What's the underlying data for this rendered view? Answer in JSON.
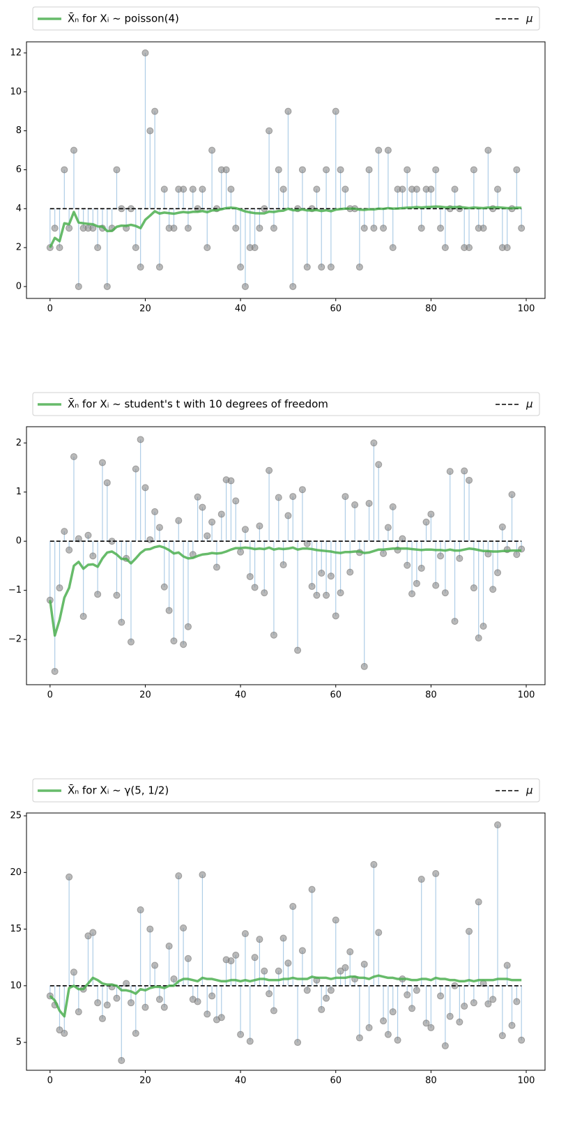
{
  "chart_data": [
    {
      "type": "stem",
      "x": [
        0,
        1,
        2,
        3,
        4,
        5,
        6,
        7,
        8,
        9,
        10,
        11,
        12,
        13,
        14,
        15,
        16,
        17,
        18,
        19,
        20,
        21,
        22,
        23,
        24,
        25,
        26,
        27,
        28,
        29,
        30,
        31,
        32,
        33,
        34,
        35,
        36,
        37,
        38,
        39,
        40,
        41,
        42,
        43,
        44,
        45,
        46,
        47,
        48,
        49,
        50,
        51,
        52,
        53,
        54,
        55,
        56,
        57,
        58,
        59,
        60,
        61,
        62,
        63,
        64,
        65,
        66,
        67,
        68,
        69,
        70,
        71,
        72,
        73,
        74,
        75,
        76,
        77,
        78,
        79,
        80,
        81,
        82,
        83,
        84,
        85,
        86,
        87,
        88,
        89,
        90,
        91,
        92,
        93,
        94,
        95,
        96,
        97,
        98,
        99
      ],
      "values": [
        2,
        3,
        2,
        6,
        3,
        7,
        0,
        3,
        3,
        3,
        2,
        3,
        0,
        3,
        6,
        4,
        3,
        4,
        2,
        1,
        12,
        8,
        9,
        1,
        5,
        3,
        3,
        5,
        5,
        3,
        5,
        4,
        5,
        2,
        7,
        4,
        6,
        6,
        5,
        3,
        1,
        0,
        2,
        2,
        3,
        4,
        8,
        3,
        6,
        5,
        9,
        0,
        4,
        6,
        1,
        4,
        5,
        1,
        6,
        1,
        9,
        6,
        5,
        4,
        4,
        1,
        3,
        6,
        3,
        7,
        3,
        7,
        2,
        5,
        5,
        6,
        5,
        5,
        3,
        5,
        5,
        6,
        3,
        2,
        4,
        5,
        4,
        2,
        2,
        6,
        3,
        3,
        7,
        4,
        5,
        2,
        2,
        4,
        6,
        3
      ],
      "marker_color": "#808080",
      "stem_color": "#aecde6",
      "series": [
        {
          "name": "X̄ₙ for Xᵢ ~ poisson(4)",
          "color": "#4caf50",
          "values": [
            2.0,
            2.5,
            2.33,
            3.25,
            3.2,
            3.83,
            3.29,
            3.25,
            3.22,
            3.2,
            3.09,
            3.08,
            2.85,
            2.86,
            3.07,
            3.13,
            3.12,
            3.17,
            3.11,
            3.0,
            3.43,
            3.64,
            3.87,
            3.75,
            3.8,
            3.77,
            3.74,
            3.79,
            3.83,
            3.8,
            3.84,
            3.84,
            3.88,
            3.82,
            3.91,
            3.92,
            3.97,
            4.03,
            4.05,
            4.03,
            3.95,
            3.86,
            3.81,
            3.77,
            3.76,
            3.76,
            3.85,
            3.83,
            3.88,
            3.9,
            4.0,
            3.92,
            3.92,
            3.96,
            3.91,
            3.91,
            3.93,
            3.88,
            3.92,
            3.87,
            3.95,
            3.98,
            4.0,
            4.0,
            4.0,
            3.95,
            3.94,
            3.97,
            3.96,
            4.0,
            3.99,
            4.03,
            4.0,
            4.01,
            4.03,
            4.05,
            4.06,
            4.08,
            4.06,
            4.08,
            4.09,
            4.11,
            4.1,
            4.07,
            4.07,
            4.08,
            4.08,
            4.06,
            4.03,
            4.06,
            4.04,
            4.03,
            4.06,
            4.06,
            4.07,
            4.05,
            4.03,
            4.03,
            4.05,
            4.04
          ]
        }
      ],
      "hline": {
        "name": "μ",
        "value": 4,
        "color": "#000000"
      },
      "xlim": [
        -4.95,
        103.95
      ],
      "xticks": [
        0,
        20,
        40,
        60,
        80,
        100
      ],
      "ylim": [
        -0.61,
        12.57
      ],
      "yticks": [
        0,
        2,
        4,
        6,
        8,
        10,
        12
      ],
      "legend": "top"
    },
    {
      "type": "stem",
      "x": [
        0,
        1,
        2,
        3,
        4,
        5,
        6,
        7,
        8,
        9,
        10,
        11,
        12,
        13,
        14,
        15,
        16,
        17,
        18,
        19,
        20,
        21,
        22,
        23,
        24,
        25,
        26,
        27,
        28,
        29,
        30,
        31,
        32,
        33,
        34,
        35,
        36,
        37,
        38,
        39,
        40,
        41,
        42,
        43,
        44,
        45,
        46,
        47,
        48,
        49,
        50,
        51,
        52,
        53,
        54,
        55,
        56,
        57,
        58,
        59,
        60,
        61,
        62,
        63,
        64,
        65,
        66,
        67,
        68,
        69,
        70,
        71,
        72,
        73,
        74,
        75,
        76,
        77,
        78,
        79,
        80,
        81,
        82,
        83,
        84,
        85,
        86,
        87,
        88,
        89,
        90,
        91,
        92,
        93,
        94,
        95,
        96,
        97,
        98,
        99
      ],
      "values": [
        -1.2,
        -2.65,
        -0.95,
        0.2,
        -0.18,
        1.72,
        0.05,
        -1.53,
        0.12,
        -0.3,
        -1.08,
        1.6,
        1.19,
        0.0,
        -1.1,
        -1.65,
        -0.35,
        -2.05,
        1.47,
        2.07,
        1.09,
        0.03,
        0.6,
        0.28,
        -0.93,
        -1.41,
        -2.03,
        0.42,
        -2.1,
        -1.74,
        -0.27,
        0.9,
        0.69,
        0.11,
        0.39,
        -0.53,
        0.55,
        1.25,
        1.23,
        0.82,
        -0.22,
        0.24,
        -0.72,
        -0.94,
        0.31,
        -1.05,
        1.44,
        -1.91,
        0.89,
        -0.48,
        0.52,
        0.91,
        -2.22,
        1.05,
        -0.05,
        -0.92,
        -1.1,
        -0.65,
        -1.1,
        -0.71,
        -1.52,
        -1.05,
        0.91,
        -0.63,
        0.74,
        -0.23,
        -2.55,
        0.77,
        2.0,
        1.56,
        -0.25,
        0.28,
        0.7,
        -0.18,
        0.05,
        -0.49,
        -1.07,
        -0.86,
        -0.55,
        0.39,
        0.55,
        -0.9,
        -0.3,
        -1.05,
        1.42,
        -1.63,
        -0.35,
        1.43,
        1.24,
        -0.95,
        -1.97,
        -1.73,
        -0.26,
        -0.98,
        -0.64,
        0.29,
        -0.17,
        0.95,
        -0.27,
        -0.16
      ],
      "marker_color": "#808080",
      "stem_color": "#aecde6",
      "series": [
        {
          "name": "X̄ₙ for Xᵢ ~ student's t with 10 degrees of freedom",
          "color": "#4caf50",
          "values": [
            -1.2,
            -1.92,
            -1.6,
            -1.15,
            -0.95,
            -0.5,
            -0.42,
            -0.56,
            -0.48,
            -0.47,
            -0.52,
            -0.35,
            -0.23,
            -0.21,
            -0.27,
            -0.36,
            -0.36,
            -0.45,
            -0.35,
            -0.24,
            -0.17,
            -0.16,
            -0.12,
            -0.1,
            -0.13,
            -0.18,
            -0.25,
            -0.23,
            -0.31,
            -0.35,
            -0.34,
            -0.3,
            -0.27,
            -0.26,
            -0.24,
            -0.25,
            -0.24,
            -0.21,
            -0.17,
            -0.14,
            -0.14,
            -0.13,
            -0.14,
            -0.16,
            -0.15,
            -0.16,
            -0.13,
            -0.17,
            -0.15,
            -0.16,
            -0.15,
            -0.13,
            -0.17,
            -0.15,
            -0.15,
            -0.16,
            -0.18,
            -0.19,
            -0.2,
            -0.21,
            -0.23,
            -0.24,
            -0.22,
            -0.22,
            -0.21,
            -0.21,
            -0.24,
            -0.23,
            -0.2,
            -0.17,
            -0.17,
            -0.16,
            -0.15,
            -0.15,
            -0.15,
            -0.15,
            -0.16,
            -0.17,
            -0.18,
            -0.17,
            -0.17,
            -0.18,
            -0.18,
            -0.19,
            -0.17,
            -0.19,
            -0.19,
            -0.17,
            -0.15,
            -0.16,
            -0.18,
            -0.2,
            -0.2,
            -0.21,
            -0.21,
            -0.2,
            -0.2,
            -0.19,
            -0.19,
            -0.19
          ]
        }
      ],
      "hline": {
        "name": "μ",
        "value": 0,
        "color": "#000000"
      },
      "xlim": [
        -4.95,
        103.95
      ],
      "xticks": [
        0,
        20,
        40,
        60,
        80,
        100
      ],
      "ylim": [
        -2.92,
        2.33
      ],
      "yticks": [
        {
          "value": -2,
          "label": "−2"
        },
        {
          "value": -1,
          "label": "−1"
        },
        0,
        1,
        2
      ],
      "legend": "top"
    },
    {
      "type": "stem",
      "x": [
        0,
        1,
        2,
        3,
        4,
        5,
        6,
        7,
        8,
        9,
        10,
        11,
        12,
        13,
        14,
        15,
        16,
        17,
        18,
        19,
        20,
        21,
        22,
        23,
        24,
        25,
        26,
        27,
        28,
        29,
        30,
        31,
        32,
        33,
        34,
        35,
        36,
        37,
        38,
        39,
        40,
        41,
        42,
        43,
        44,
        45,
        46,
        47,
        48,
        49,
        50,
        51,
        52,
        53,
        54,
        55,
        56,
        57,
        58,
        59,
        60,
        61,
        62,
        63,
        64,
        65,
        66,
        67,
        68,
        69,
        70,
        71,
        72,
        73,
        74,
        75,
        76,
        77,
        78,
        79,
        80,
        81,
        82,
        83,
        84,
        85,
        86,
        87,
        88,
        89,
        90,
        91,
        92,
        93,
        94,
        95,
        96,
        97,
        98,
        99
      ],
      "values": [
        9.1,
        8.3,
        6.1,
        5.8,
        19.6,
        11.2,
        7.7,
        9.7,
        14.4,
        14.7,
        8.5,
        7.1,
        8.3,
        9.9,
        8.9,
        3.4,
        10.2,
        8.5,
        5.8,
        16.7,
        8.1,
        15.0,
        11.8,
        8.8,
        8.1,
        13.5,
        10.6,
        19.7,
        15.1,
        12.4,
        8.8,
        8.6,
        19.8,
        7.5,
        9.1,
        7.0,
        7.2,
        12.3,
        12.2,
        12.7,
        5.7,
        14.6,
        5.1,
        12.5,
        14.1,
        11.3,
        9.3,
        7.8,
        11.3,
        14.2,
        12.0,
        17.0,
        5.0,
        13.1,
        9.6,
        18.5,
        10.5,
        7.9,
        8.9,
        9.6,
        15.8,
        11.3,
        11.6,
        13.0,
        10.6,
        5.4,
        11.9,
        6.3,
        20.7,
        14.7,
        6.9,
        5.7,
        7.7,
        5.2,
        10.6,
        9.2,
        8.0,
        9.6,
        19.4,
        6.7,
        6.3,
        19.9,
        9.1,
        4.7,
        7.3,
        10.0,
        6.8,
        8.2,
        14.8,
        8.5,
        17.4,
        10.2,
        8.4,
        8.8,
        24.2,
        5.6,
        11.8,
        6.5,
        8.6,
        5.2
      ],
      "marker_color": "#808080",
      "stem_color": "#aecde6",
      "series": [
        {
          "name": "X̄ₙ for Xᵢ ~ γ(5, 1/2)",
          "color": "#4caf50",
          "values": [
            9.1,
            8.7,
            7.8,
            7.3,
            9.8,
            10.0,
            9.7,
            9.7,
            10.2,
            10.7,
            10.5,
            10.2,
            10.1,
            10.1,
            10.0,
            9.6,
            9.6,
            9.5,
            9.3,
            9.7,
            9.6,
            9.8,
            9.9,
            9.9,
            9.8,
            10.0,
            10.0,
            10.4,
            10.6,
            10.6,
            10.5,
            10.4,
            10.7,
            10.6,
            10.6,
            10.5,
            10.4,
            10.4,
            10.5,
            10.5,
            10.4,
            10.5,
            10.4,
            10.5,
            10.6,
            10.6,
            10.5,
            10.5,
            10.5,
            10.6,
            10.6,
            10.7,
            10.6,
            10.6,
            10.6,
            10.8,
            10.7,
            10.7,
            10.7,
            10.6,
            10.7,
            10.7,
            10.7,
            10.8,
            10.8,
            10.7,
            10.7,
            10.6,
            10.8,
            10.9,
            10.8,
            10.7,
            10.7,
            10.6,
            10.6,
            10.6,
            10.5,
            10.5,
            10.6,
            10.6,
            10.5,
            10.7,
            10.6,
            10.6,
            10.5,
            10.5,
            10.4,
            10.4,
            10.5,
            10.4,
            10.5,
            10.5,
            10.5,
            10.5,
            10.6,
            10.6,
            10.6,
            10.5,
            10.5,
            10.5
          ]
        }
      ],
      "hline": {
        "name": "μ",
        "value": 10,
        "color": "#000000"
      },
      "xlim": [
        -4.95,
        103.95
      ],
      "xticks": [
        0,
        20,
        40,
        60,
        80,
        100
      ],
      "ylim": [
        2.54,
        25.25
      ],
      "yticks": [
        5,
        10,
        15,
        20,
        25
      ],
      "legend": "top"
    }
  ]
}
